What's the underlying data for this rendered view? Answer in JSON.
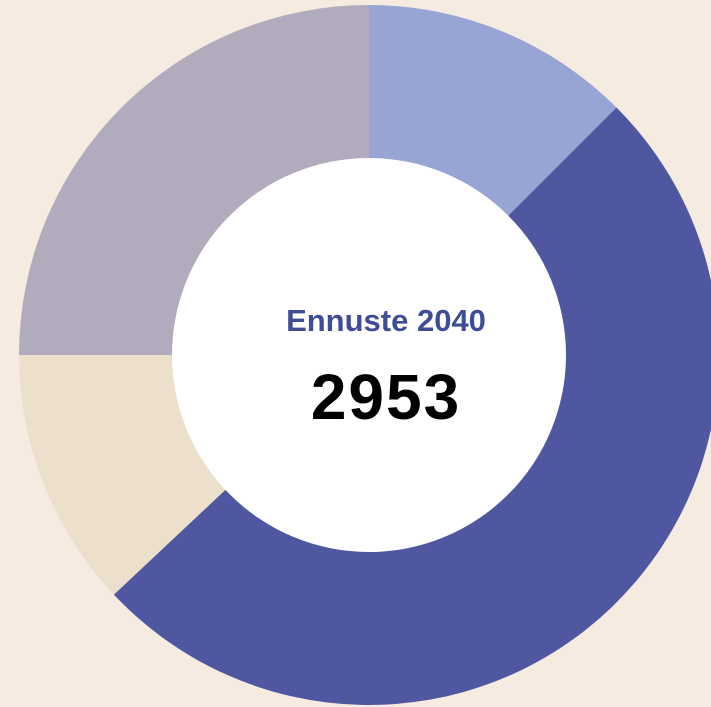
{
  "chart_data": {
    "type": "donut",
    "title": "Ennuste 2040",
    "total": 2953,
    "values": [
      12.5,
      50.5,
      12,
      25
    ],
    "colors": [
      "#97a5d4",
      "#4f57a0",
      "#ecdfcc",
      "#b2abbe"
    ]
  }
}
